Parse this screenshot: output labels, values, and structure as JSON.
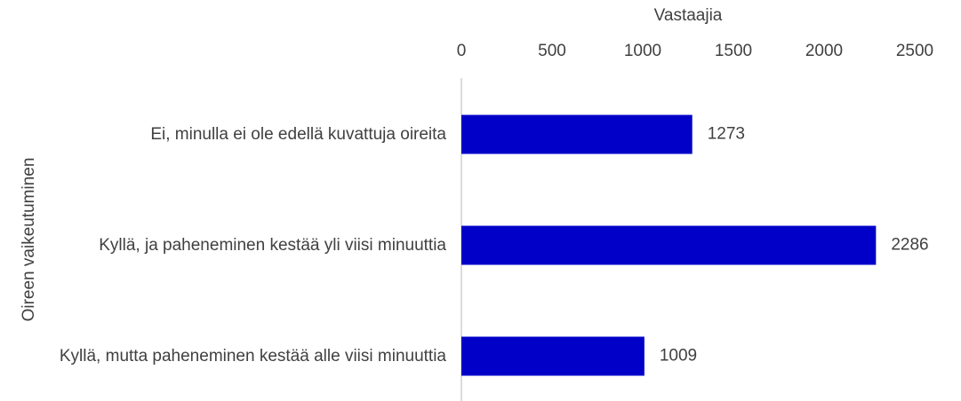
{
  "chart_data": {
    "type": "bar",
    "orientation": "horizontal",
    "xlabel": "Vastaajia",
    "ylabel": "Oireen vaikeutuminen",
    "categories": [
      "Ei, minulla ei ole edellä kuvattuja oireita",
      "Kyllä, ja paheneminen kestää yli viisi minuuttia",
      "Kyllä, mutta paheneminen kestää alle viisi minuuttia"
    ],
    "values": [
      1273,
      2286,
      1009
    ],
    "color": "#0000c8",
    "xlim": [
      0,
      2500
    ],
    "xticks": [
      0,
      500,
      1000,
      1500,
      2000,
      2500
    ]
  }
}
